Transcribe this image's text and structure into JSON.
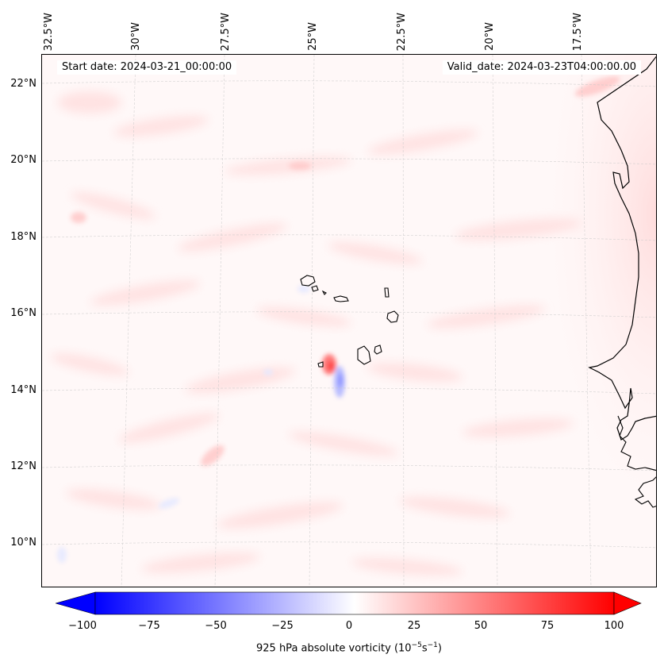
{
  "map": {
    "start_label": "Start date: 2024-03-21_00:00:00",
    "valid_label": "Valid_date: 2024-03-23T04:00:00.00",
    "longitude_labels": [
      "32.5°W",
      "30°W",
      "27.5°W",
      "25°W",
      "22.5°W",
      "20°W",
      "17.5°W"
    ],
    "latitude_labels": [
      "22°N",
      "20°N",
      "18°N",
      "16°N",
      "14°N",
      "12°N",
      "10°N"
    ],
    "land_features": [
      "west-africa-coastline",
      "cape-verde-islands"
    ],
    "gridlines": true
  },
  "colorbar": {
    "colormap": "bwr",
    "min": -100,
    "max": 100,
    "ticks": [
      "−100",
      "−75",
      "−50",
      "−25",
      "0",
      "25",
      "50",
      "75",
      "100"
    ],
    "label_main": "925 hPa absolute vorticity (10",
    "label_exp1": "−5",
    "label_mid": "s",
    "label_exp2": "−1",
    "label_end": ")",
    "extend": "both"
  },
  "colors": {
    "negative": "#0000ff",
    "neutral": "#ffffff",
    "positive": "#ff0000",
    "background_field": "#fff8f8"
  }
}
